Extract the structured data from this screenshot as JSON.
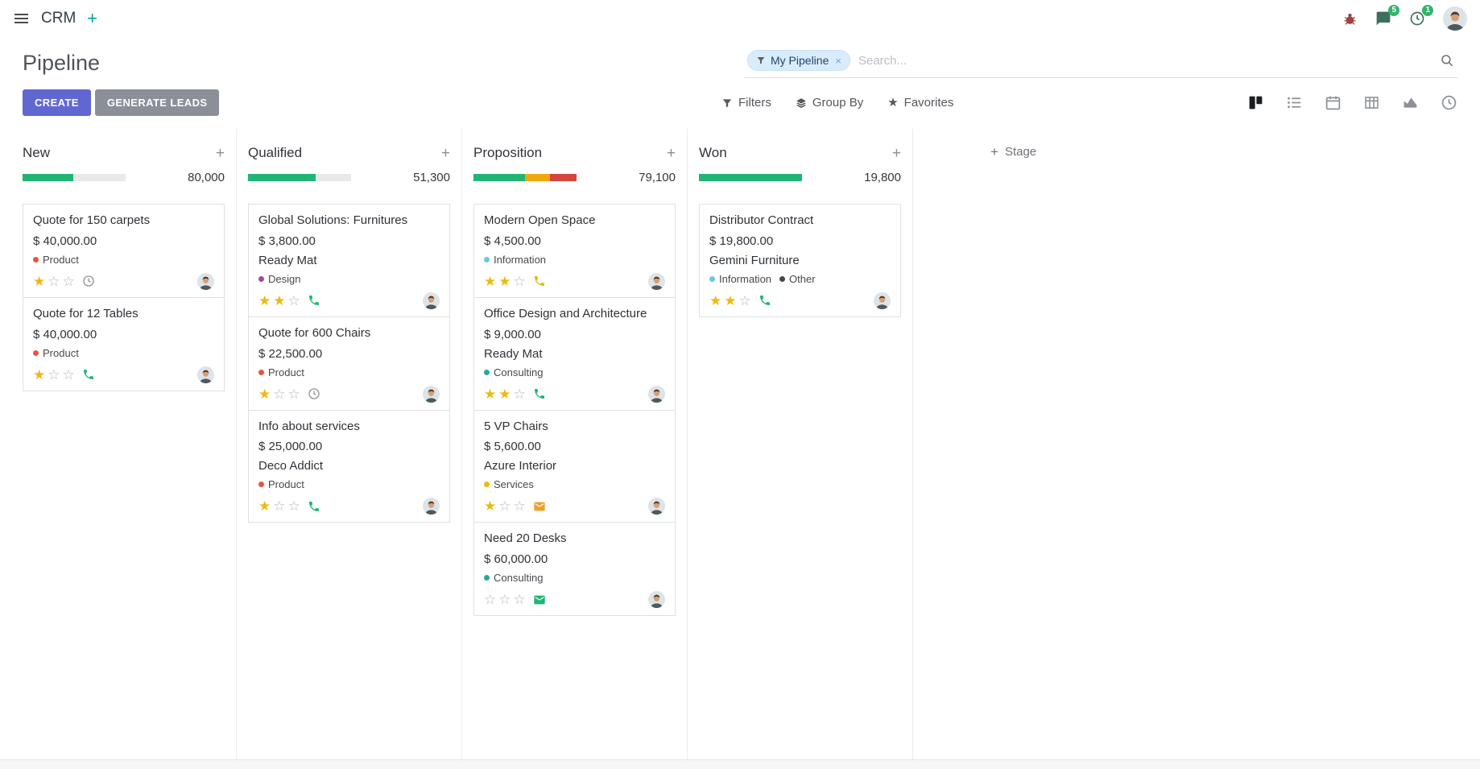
{
  "icons": {
    "plus": "+",
    "close": "×",
    "star_filled": "★",
    "star_empty": "☆"
  },
  "colors": {
    "primary": "#6167d0",
    "secondary": "#8a8f98",
    "success": "#21b573",
    "warning": "#f0a80e",
    "danger": "#d6453c",
    "star_gold": "#efb810",
    "badge_green": "#32b56b"
  },
  "topbar": {
    "app_title": "CRM",
    "messages_badge": "5",
    "activities_badge": "1"
  },
  "control_panel": {
    "title": "Pipeline",
    "buttons": {
      "create": "CREATE",
      "generate_leads": "GENERATE LEADS"
    },
    "search": {
      "facet_label": "My Pipeline",
      "placeholder": "Search..."
    },
    "menus": {
      "filters": "Filters",
      "group_by": "Group By",
      "favorites": "Favorites"
    }
  },
  "view_switcher": {
    "active": "kanban",
    "views": [
      "kanban",
      "list",
      "calendar",
      "pivot",
      "graph",
      "activity"
    ]
  },
  "board": {
    "add_stage_label": "Stage",
    "columns": [
      {
        "name": "New",
        "total": "80,000",
        "progress": [
          {
            "color": "success",
            "pct": 49
          },
          {
            "color": "none",
            "pct": 51
          }
        ],
        "cards": [
          {
            "title": "Quote for 150 carpets",
            "amount": "$ 40,000.00",
            "partner": "",
            "tags": [
              {
                "label": "Product",
                "color": "#e8543e"
              }
            ],
            "stars": 1,
            "activity": {
              "type": "clock",
              "color": "#8f9398"
            }
          },
          {
            "title": "Quote for 12 Tables",
            "amount": "$ 40,000.00",
            "partner": "",
            "tags": [
              {
                "label": "Product",
                "color": "#e8543e"
              }
            ],
            "stars": 1,
            "activity": {
              "type": "phone",
              "color": "#21b573"
            }
          }
        ]
      },
      {
        "name": "Qualified",
        "total": "51,300",
        "progress": [
          {
            "color": "success",
            "pct": 66
          },
          {
            "color": "none",
            "pct": 34
          }
        ],
        "cards": [
          {
            "title": "Global Solutions: Furnitures",
            "amount": "$ 3,800.00",
            "partner": "Ready Mat",
            "tags": [
              {
                "label": "Design",
                "color": "#a3499b"
              }
            ],
            "stars": 2,
            "activity": {
              "type": "phone",
              "color": "#21b573"
            }
          },
          {
            "title": "Quote for 600 Chairs",
            "amount": "$ 22,500.00",
            "partner": "",
            "tags": [
              {
                "label": "Product",
                "color": "#e8543e"
              }
            ],
            "stars": 1,
            "activity": {
              "type": "clock",
              "color": "#8f9398"
            }
          },
          {
            "title": "Info about services",
            "amount": "$ 25,000.00",
            "partner": "Deco Addict",
            "tags": [
              {
                "label": "Product",
                "color": "#e8543e"
              }
            ],
            "stars": 1,
            "activity": {
              "type": "phone",
              "color": "#21b573"
            }
          }
        ]
      },
      {
        "name": "Proposition",
        "total": "79,100",
        "progress": [
          {
            "color": "success",
            "pct": 50
          },
          {
            "color": "warning",
            "pct": 24
          },
          {
            "color": "danger",
            "pct": 26
          }
        ],
        "cards": [
          {
            "title": "Modern Open Space",
            "amount": "$ 4,500.00",
            "partner": "",
            "tags": [
              {
                "label": "Information",
                "color": "#6dc4ec"
              }
            ],
            "stars": 2,
            "activity": {
              "type": "phone",
              "color": "#efb30e"
            }
          },
          {
            "title": "Office Design and Architecture",
            "amount": "$ 9,000.00",
            "partner": "Ready Mat",
            "tags": [
              {
                "label": "Consulting",
                "color": "#28a79b"
              }
            ],
            "stars": 2,
            "activity": {
              "type": "phone",
              "color": "#21b573"
            }
          },
          {
            "title": "5 VP Chairs",
            "amount": "$ 5,600.00",
            "partner": "Azure Interior",
            "tags": [
              {
                "label": "Services",
                "color": "#edbb0e"
              }
            ],
            "stars": 1,
            "activity": {
              "type": "mail",
              "color": "#eda12a"
            }
          },
          {
            "title": "Need 20 Desks",
            "amount": "$ 60,000.00",
            "partner": "",
            "tags": [
              {
                "label": "Consulting",
                "color": "#28a79b"
              }
            ],
            "stars": 0,
            "activity": {
              "type": "mail",
              "color": "#21b573"
            }
          }
        ]
      },
      {
        "name": "Won",
        "total": "19,800",
        "progress": [
          {
            "color": "success",
            "pct": 100
          }
        ],
        "cards": [
          {
            "title": "Distributor Contract",
            "amount": "$ 19,800.00",
            "partner": "Gemini Furniture",
            "tags": [
              {
                "label": "Information",
                "color": "#6dc4ec"
              },
              {
                "label": "Other",
                "color": "#42484f"
              }
            ],
            "stars": 2,
            "activity": {
              "type": "phone",
              "color": "#21b573"
            }
          }
        ]
      }
    ]
  }
}
